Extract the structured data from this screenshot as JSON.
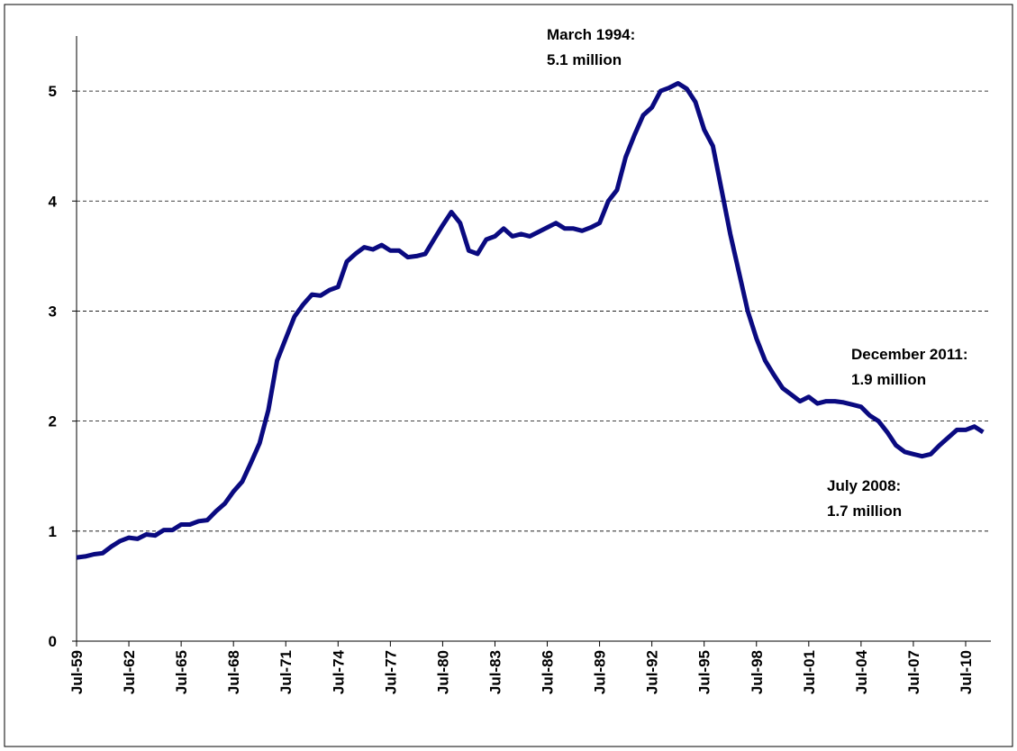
{
  "chart_data": {
    "type": "line",
    "categories": [
      "Jul-59",
      null,
      null,
      null,
      null,
      null,
      "Jul-62",
      null,
      null,
      null,
      null,
      null,
      "Jul-65",
      null,
      null,
      null,
      null,
      null,
      "Jul-68",
      null,
      null,
      null,
      null,
      null,
      "Jul-71",
      null,
      null,
      null,
      null,
      null,
      "Jul-74",
      null,
      null,
      null,
      null,
      null,
      "Jul-77",
      null,
      null,
      null,
      null,
      null,
      "Jul-80",
      null,
      null,
      null,
      null,
      null,
      "Jul-83",
      null,
      null,
      null,
      null,
      null,
      "Jul-86",
      null,
      null,
      null,
      null,
      null,
      "Jul-89",
      null,
      null,
      null,
      null,
      null,
      "Jul-92",
      null,
      null,
      null,
      null,
      null,
      "Jul-95",
      null,
      null,
      null,
      null,
      null,
      "Jul-98",
      null,
      null,
      null,
      null,
      null,
      "Jul-01",
      null,
      null,
      null,
      null,
      null,
      "Jul-04",
      null,
      null,
      null,
      null,
      null,
      "Jul-07",
      null,
      null,
      null,
      null,
      null,
      "Jul-10",
      null,
      null
    ],
    "series": [
      {
        "color": "#0a0a80",
        "values": [
          0.76,
          0.77,
          0.79,
          0.8,
          0.86,
          0.91,
          0.94,
          0.93,
          0.97,
          0.96,
          1.01,
          1.01,
          1.06,
          1.06,
          1.09,
          1.1,
          1.18,
          1.25,
          1.36,
          1.45,
          1.62,
          1.8,
          2.1,
          2.55,
          2.75,
          2.95,
          3.06,
          3.15,
          3.14,
          3.19,
          3.22,
          3.45,
          3.52,
          3.58,
          3.56,
          3.6,
          3.55,
          3.55,
          3.49,
          3.5,
          3.52,
          3.65,
          3.78,
          3.9,
          3.8,
          3.55,
          3.52,
          3.65,
          3.68,
          3.75,
          3.68,
          3.7,
          3.68,
          3.72,
          3.76,
          3.8,
          3.75,
          3.75,
          3.73,
          3.76,
          3.8,
          4.0,
          4.1,
          4.4,
          4.6,
          4.78,
          4.85,
          5.0,
          5.03,
          5.07,
          5.02,
          4.9,
          4.65,
          4.5,
          4.1,
          3.7,
          3.35,
          3.0,
          2.75,
          2.55,
          2.42,
          2.3,
          2.24,
          2.18,
          2.22,
          2.16,
          2.18,
          2.18,
          2.17,
          2.15,
          2.13,
          2.05,
          2.0,
          1.9,
          1.78,
          1.72,
          1.7,
          1.68,
          1.7,
          1.78,
          1.85,
          1.92,
          1.92,
          1.95,
          1.9
        ]
      }
    ],
    "ylim": [
      0,
      5.5
    ],
    "yticks": [
      0,
      1,
      2,
      3,
      4,
      5
    ],
    "grid": true,
    "annotations": [
      {
        "lines": [
          "March 1994:",
          "5.1 million"
        ]
      },
      {
        "lines": [
          "December 2011:",
          "1.9 million"
        ]
      },
      {
        "lines": [
          "July 2008:",
          "1.7 million"
        ]
      }
    ]
  }
}
